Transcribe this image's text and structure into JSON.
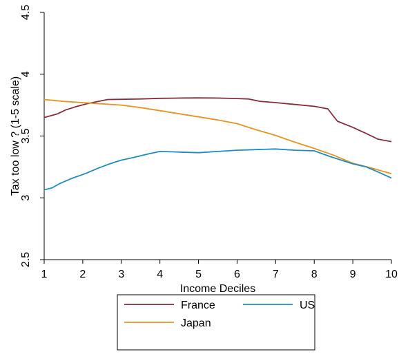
{
  "chart_data": {
    "type": "line",
    "title": "",
    "xlabel": "Income Deciles",
    "ylabel": "Tax too low ? (1-5 scale)",
    "xlim": [
      1,
      10
    ],
    "ylim": [
      2.5,
      4.5
    ],
    "x_ticks": [
      "1",
      "2",
      "3",
      "4",
      "5",
      "6",
      "7",
      "8",
      "9",
      "10"
    ],
    "y_ticks": [
      "2.5",
      "3",
      "3.5",
      "4",
      "4.5"
    ],
    "grid": false,
    "legend_position": "bottom",
    "series": [
      {
        "name": "France",
        "color": "#8b2a3a",
        "x": [
          1,
          1.35,
          1.55,
          1.8,
          2.1,
          2.4,
          2.65,
          3,
          3.5,
          4,
          4.5,
          5,
          5.5,
          6,
          6.3,
          6.6,
          7,
          7.5,
          8,
          8.35,
          8.6,
          9,
          9.35,
          9.65,
          10
        ],
        "y": [
          3.65,
          3.68,
          3.71,
          3.735,
          3.76,
          3.78,
          3.795,
          3.797,
          3.8,
          3.805,
          3.807,
          3.808,
          3.807,
          3.803,
          3.8,
          3.78,
          3.77,
          3.755,
          3.74,
          3.72,
          3.62,
          3.57,
          3.52,
          3.475,
          3.455
        ]
      },
      {
        "name": "Japan",
        "color": "#e8931e",
        "x": [
          1,
          1.5,
          2,
          2.5,
          3,
          3.5,
          4,
          4.5,
          5,
          5.5,
          6,
          6.5,
          7,
          7.5,
          8,
          8.5,
          9,
          9.5,
          10
        ],
        "y": [
          3.795,
          3.78,
          3.77,
          3.76,
          3.75,
          3.73,
          3.705,
          3.68,
          3.655,
          3.63,
          3.6,
          3.55,
          3.505,
          3.45,
          3.4,
          3.345,
          3.28,
          3.24,
          3.195
        ]
      },
      {
        "name": "US",
        "color": "#1f8bbf",
        "x": [
          1,
          1.2,
          1.4,
          1.7,
          2.1,
          2.4,
          2.7,
          3,
          3.3,
          3.7,
          4,
          4.5,
          5,
          5.5,
          6,
          6.5,
          7,
          7.5,
          8,
          8.4,
          8.7,
          9,
          9.35,
          9.65,
          10
        ],
        "y": [
          3.065,
          3.08,
          3.115,
          3.155,
          3.2,
          3.24,
          3.275,
          3.305,
          3.325,
          3.355,
          3.375,
          3.37,
          3.365,
          3.375,
          3.385,
          3.39,
          3.395,
          3.385,
          3.38,
          3.335,
          3.305,
          3.275,
          3.25,
          3.21,
          3.16
        ]
      }
    ]
  }
}
